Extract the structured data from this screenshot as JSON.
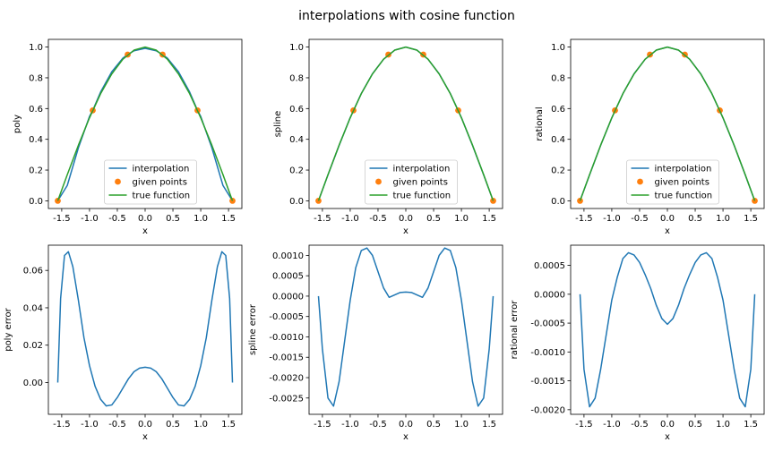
{
  "title": "interpolations with cosine function",
  "legend": [
    "interpolation",
    "given points",
    "true function"
  ],
  "colors": {
    "interpolation": "#1f77b4",
    "given_points": "#ff7f0e",
    "true_function": "#2ca02c"
  },
  "chart_data": [
    {
      "type": "line",
      "ylabel": "poly",
      "xlabel": "x",
      "xlim": [
        -1.74,
        1.74
      ],
      "ylim": [
        -0.05,
        1.05
      ],
      "xticks": [
        "-1.5",
        "-1.0",
        "-0.5",
        "0.0",
        "0.5",
        "1.0",
        "1.5"
      ],
      "xtick_values": [
        -1.5,
        -1.0,
        -0.5,
        0.0,
        0.5,
        1.0,
        1.5
      ],
      "yticks": [
        "0.0",
        "0.2",
        "0.4",
        "0.6",
        "0.8",
        "1.0"
      ],
      "ytick_values": [
        0,
        0.2,
        0.4,
        0.6,
        0.8,
        1.0
      ],
      "legend_loc": "lower-center",
      "series": [
        {
          "name": "interpolation",
          "x": [
            -1.571,
            -1.4,
            -1.2,
            -1.0,
            -0.9425,
            -0.8,
            -0.6,
            -0.4,
            -0.3142,
            -0.2,
            0.0,
            0.2,
            0.3142,
            0.4,
            0.6,
            0.8,
            0.9425,
            1.0,
            1.2,
            1.4,
            1.571
          ],
          "y": [
            0.0,
            0.1,
            0.345,
            0.549,
            0.588,
            0.708,
            0.839,
            0.928,
            0.951,
            0.976,
            0.992,
            0.976,
            0.951,
            0.928,
            0.839,
            0.708,
            0.588,
            0.549,
            0.345,
            0.1,
            0.0
          ]
        },
        {
          "name": "given points",
          "x": [
            -1.571,
            -0.9425,
            -0.3142,
            0.3142,
            0.9425,
            1.571
          ],
          "y": [
            0.0,
            0.588,
            0.951,
            0.951,
            0.588,
            0.0
          ]
        },
        {
          "name": "true function",
          "x": [
            -1.571,
            -1.4,
            -1.2,
            -1.0,
            -0.8,
            -0.6,
            -0.4,
            -0.2,
            0.0,
            0.2,
            0.4,
            0.6,
            0.8,
            1.0,
            1.2,
            1.4,
            1.571
          ],
          "y": [
            0.0,
            0.17,
            0.362,
            0.54,
            0.697,
            0.825,
            0.921,
            0.98,
            1.0,
            0.98,
            0.921,
            0.825,
            0.697,
            0.54,
            0.362,
            0.17,
            0.0
          ]
        }
      ]
    },
    {
      "type": "line",
      "ylabel": "spline",
      "xlabel": "x",
      "xlim": [
        -1.74,
        1.74
      ],
      "ylim": [
        -0.05,
        1.05
      ],
      "xticks": [
        "-1.5",
        "-1.0",
        "-0.5",
        "0.0",
        "0.5",
        "1.0",
        "1.5"
      ],
      "xtick_values": [
        -1.5,
        -1.0,
        -0.5,
        0.0,
        0.5,
        1.0,
        1.5
      ],
      "yticks": [
        "0.0",
        "0.2",
        "0.4",
        "0.6",
        "0.8",
        "1.0"
      ],
      "ytick_values": [
        0,
        0.2,
        0.4,
        0.6,
        0.8,
        1.0
      ],
      "legend_loc": "lower-center",
      "series": [
        {
          "name": "interpolation",
          "x": [
            -1.571,
            -1.4,
            -1.2,
            -1.0,
            -0.8,
            -0.6,
            -0.4,
            -0.2,
            0.0,
            0.2,
            0.4,
            0.6,
            0.8,
            1.0,
            1.2,
            1.4,
            1.571
          ],
          "y": [
            0.0,
            0.168,
            0.36,
            0.541,
            0.698,
            0.826,
            0.921,
            0.98,
            1.0,
            0.98,
            0.921,
            0.826,
            0.698,
            0.541,
            0.36,
            0.168,
            0.0
          ]
        },
        {
          "name": "given points",
          "x": [
            -1.571,
            -0.9425,
            -0.3142,
            0.3142,
            0.9425,
            1.571
          ],
          "y": [
            0.0,
            0.588,
            0.951,
            0.951,
            0.588,
            0.0
          ]
        },
        {
          "name": "true function",
          "x": [
            -1.571,
            -1.4,
            -1.2,
            -1.0,
            -0.8,
            -0.6,
            -0.4,
            -0.2,
            0.0,
            0.2,
            0.4,
            0.6,
            0.8,
            1.0,
            1.2,
            1.4,
            1.571
          ],
          "y": [
            0.0,
            0.17,
            0.362,
            0.54,
            0.697,
            0.825,
            0.921,
            0.98,
            1.0,
            0.98,
            0.921,
            0.825,
            0.697,
            0.54,
            0.362,
            0.17,
            0.0
          ]
        }
      ]
    },
    {
      "type": "line",
      "ylabel": "rational",
      "xlabel": "x",
      "xlim": [
        -1.74,
        1.74
      ],
      "ylim": [
        -0.05,
        1.05
      ],
      "xticks": [
        "-1.5",
        "-1.0",
        "-0.5",
        "0.0",
        "0.5",
        "1.0",
        "1.5"
      ],
      "xtick_values": [
        -1.5,
        -1.0,
        -0.5,
        0.0,
        0.5,
        1.0,
        1.5
      ],
      "yticks": [
        "0.0",
        "0.2",
        "0.4",
        "0.6",
        "0.8",
        "1.0"
      ],
      "ytick_values": [
        0,
        0.2,
        0.4,
        0.6,
        0.8,
        1.0
      ],
      "legend_loc": "lower-center",
      "series": [
        {
          "name": "interpolation",
          "x": [
            -1.571,
            -1.4,
            -1.2,
            -1.0,
            -0.8,
            -0.6,
            -0.4,
            -0.2,
            0.0,
            0.2,
            0.4,
            0.6,
            0.8,
            1.0,
            1.2,
            1.4,
            1.571
          ],
          "y": [
            0.0,
            0.168,
            0.361,
            0.539,
            0.697,
            0.826,
            0.921,
            0.98,
            1.0,
            0.98,
            0.921,
            0.826,
            0.697,
            0.539,
            0.361,
            0.168,
            0.0
          ]
        },
        {
          "name": "given points",
          "x": [
            -1.571,
            -0.9425,
            -0.3142,
            0.3142,
            0.9425,
            1.571
          ],
          "y": [
            0.0,
            0.588,
            0.951,
            0.951,
            0.588,
            0.0
          ]
        },
        {
          "name": "true function",
          "x": [
            -1.571,
            -1.4,
            -1.2,
            -1.0,
            -0.8,
            -0.6,
            -0.4,
            -0.2,
            0.0,
            0.2,
            0.4,
            0.6,
            0.8,
            1.0,
            1.2,
            1.4,
            1.571
          ],
          "y": [
            0.0,
            0.17,
            0.362,
            0.54,
            0.697,
            0.825,
            0.921,
            0.98,
            1.0,
            0.98,
            0.921,
            0.825,
            0.697,
            0.54,
            0.362,
            0.17,
            0.0
          ]
        }
      ]
    },
    {
      "type": "line",
      "ylabel": "poly error",
      "xlabel": "x",
      "xlim": [
        -1.74,
        1.74
      ],
      "ylim": [
        -0.017,
        0.0735
      ],
      "xticks": [
        "-1.5",
        "-1.0",
        "-0.5",
        "0.0",
        "0.5",
        "1.0",
        "1.5"
      ],
      "xtick_values": [
        -1.5,
        -1.0,
        -0.5,
        0.0,
        0.5,
        1.0,
        1.5
      ],
      "yticks": [
        "0.00",
        "0.02",
        "0.04",
        "0.06"
      ],
      "ytick_values": [
        0.0,
        0.02,
        0.04,
        0.06
      ],
      "series": [
        {
          "name": "poly error",
          "x": [
            -1.571,
            -1.52,
            -1.45,
            -1.38,
            -1.3,
            -1.2,
            -1.1,
            -1.0,
            -0.9,
            -0.8,
            -0.7,
            -0.6,
            -0.5,
            -0.4,
            -0.3,
            -0.2,
            -0.1,
            0.0,
            0.1,
            0.2,
            0.3,
            0.4,
            0.5,
            0.6,
            0.7,
            0.8,
            0.9,
            1.0,
            1.1,
            1.2,
            1.3,
            1.38,
            1.45,
            1.52,
            1.571
          ],
          "y": [
            0.0,
            0.045,
            0.068,
            0.07,
            0.062,
            0.044,
            0.024,
            0.009,
            -0.002,
            -0.009,
            -0.0125,
            -0.012,
            -0.008,
            -0.003,
            0.002,
            0.0058,
            0.0077,
            0.0082,
            0.0077,
            0.0058,
            0.002,
            -0.003,
            -0.008,
            -0.012,
            -0.0125,
            -0.009,
            -0.002,
            0.009,
            0.024,
            0.044,
            0.062,
            0.07,
            0.068,
            0.045,
            0.0
          ]
        }
      ]
    },
    {
      "type": "line",
      "ylabel": "spline error",
      "xlabel": "x",
      "xlim": [
        -1.74,
        1.74
      ],
      "ylim": [
        -0.0029,
        0.00125
      ],
      "xticks": [
        "-1.5",
        "-1.0",
        "-0.5",
        "0.0",
        "0.5",
        "1.0",
        "1.5"
      ],
      "xtick_values": [
        -1.5,
        -1.0,
        -0.5,
        0.0,
        0.5,
        1.0,
        1.5
      ],
      "yticks": [
        "0.0010",
        "0.0005",
        "0.0000",
        "-0.0005",
        "-0.0010",
        "-0.0015",
        "-0.0020",
        "-0.0025"
      ],
      "ytick_values": [
        0.001,
        0.0005,
        0.0,
        -0.0005,
        -0.001,
        -0.0015,
        -0.002,
        -0.0025
      ],
      "series": [
        {
          "name": "spline error",
          "x": [
            -1.571,
            -1.5,
            -1.4,
            -1.3,
            -1.2,
            -1.1,
            -1.0,
            -0.9,
            -0.8,
            -0.7,
            -0.6,
            -0.5,
            -0.4,
            -0.3,
            -0.2,
            -0.1,
            0.0,
            0.1,
            0.2,
            0.3,
            0.4,
            0.5,
            0.6,
            0.7,
            0.8,
            0.9,
            1.0,
            1.1,
            1.2,
            1.3,
            1.4,
            1.5,
            1.571
          ],
          "y": [
            0.0,
            -0.0013,
            -0.0025,
            -0.0027,
            -0.0021,
            -0.0011,
            -0.0001,
            0.0007,
            0.00112,
            0.00118,
            0.001,
            0.0006,
            0.0002,
            -3e-05,
            3e-05,
            9e-05,
            0.0001,
            9e-05,
            3e-05,
            -3e-05,
            0.0002,
            0.0006,
            0.001,
            0.00118,
            0.00112,
            0.0007,
            -0.0001,
            -0.0011,
            -0.0021,
            -0.0027,
            -0.0025,
            -0.0013,
            0.0
          ]
        }
      ]
    },
    {
      "type": "line",
      "ylabel": "rational error",
      "xlabel": "x",
      "xlim": [
        -1.74,
        1.74
      ],
      "ylim": [
        -0.00208,
        0.00085
      ],
      "xticks": [
        "-1.5",
        "-1.0",
        "-0.5",
        "0.0",
        "0.5",
        "1.0",
        "1.5"
      ],
      "xtick_values": [
        -1.5,
        -1.0,
        -0.5,
        0.0,
        0.5,
        1.0,
        1.5
      ],
      "yticks": [
        "0.0005",
        "0.0000",
        "-0.0005",
        "-0.0010",
        "-0.0015",
        "-0.0020"
      ],
      "ytick_values": [
        0.0005,
        0.0,
        -0.0005,
        -0.001,
        -0.0015,
        -0.002
      ],
      "series": [
        {
          "name": "rational error",
          "x": [
            -1.571,
            -1.5,
            -1.4,
            -1.3,
            -1.2,
            -1.1,
            -1.0,
            -0.9,
            -0.8,
            -0.7,
            -0.6,
            -0.5,
            -0.4,
            -0.3,
            -0.2,
            -0.1,
            0.0,
            0.1,
            0.2,
            0.3,
            0.4,
            0.5,
            0.6,
            0.7,
            0.8,
            0.9,
            1.0,
            1.1,
            1.2,
            1.3,
            1.4,
            1.5,
            1.571
          ],
          "y": [
            0.0,
            -0.0013,
            -0.00195,
            -0.0018,
            -0.0013,
            -0.0007,
            -0.0001,
            0.0003,
            0.00062,
            0.00072,
            0.00068,
            0.00055,
            0.00034,
            0.0001,
            -0.00019,
            -0.00042,
            -0.00052,
            -0.00042,
            -0.00019,
            0.0001,
            0.00034,
            0.00055,
            0.00068,
            0.00072,
            0.00062,
            0.0003,
            -0.0001,
            -0.0007,
            -0.0013,
            -0.0018,
            -0.00195,
            -0.0013,
            0.0
          ]
        }
      ]
    }
  ]
}
